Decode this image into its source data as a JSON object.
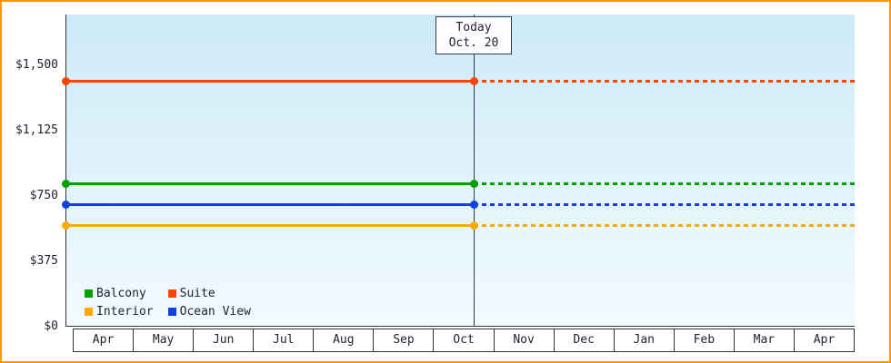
{
  "chart_data": {
    "type": "line",
    "title": "",
    "x_categories": [
      "Apr",
      "May",
      "Jun",
      "Jul",
      "Aug",
      "Sep",
      "Oct",
      "Nov",
      "Dec",
      "Jan",
      "Feb",
      "Mar",
      "Apr"
    ],
    "ylim": [
      0,
      1500
    ],
    "yticks": [
      {
        "value": 0,
        "label": "$0"
      },
      {
        "value": 375,
        "label": "$375"
      },
      {
        "value": 750,
        "label": "$750"
      },
      {
        "value": 1125,
        "label": "$1,125"
      },
      {
        "value": 1500,
        "label": "$1,500"
      }
    ],
    "grid": false,
    "today": {
      "label_lines": [
        "Today",
        "Oct. 20"
      ],
      "month_index": 6,
      "day": 20,
      "days_in_month": 31
    },
    "series": [
      {
        "name": "Suite",
        "color": "#ff4500",
        "value": 1410,
        "style_before_today": "solid",
        "style_after_today": "dotted"
      },
      {
        "name": "Balcony",
        "color": "#00a000",
        "value": 820,
        "style_before_today": "solid",
        "style_after_today": "dotted"
      },
      {
        "name": "Ocean View",
        "color": "#1040e0",
        "value": 700,
        "style_before_today": "solid",
        "style_after_today": "dotted"
      },
      {
        "name": "Interior",
        "color": "#ffa800",
        "value": 580,
        "style_before_today": "solid",
        "style_after_today": "dotted"
      }
    ],
    "legend": [
      {
        "label": "Balcony",
        "color": "#00a000"
      },
      {
        "label": "Suite",
        "color": "#ff4500"
      },
      {
        "label": "Interior",
        "color": "#ffa800"
      },
      {
        "label": "Ocean View",
        "color": "#1040e0"
      }
    ],
    "legend_position": "bottom-left"
  },
  "colors": {
    "frame_border": "#ff9800",
    "plot_bg_top": "#cdeaf7",
    "plot_bg_bottom": "#f2fbff",
    "axis": "#333333",
    "text": "#222233"
  }
}
